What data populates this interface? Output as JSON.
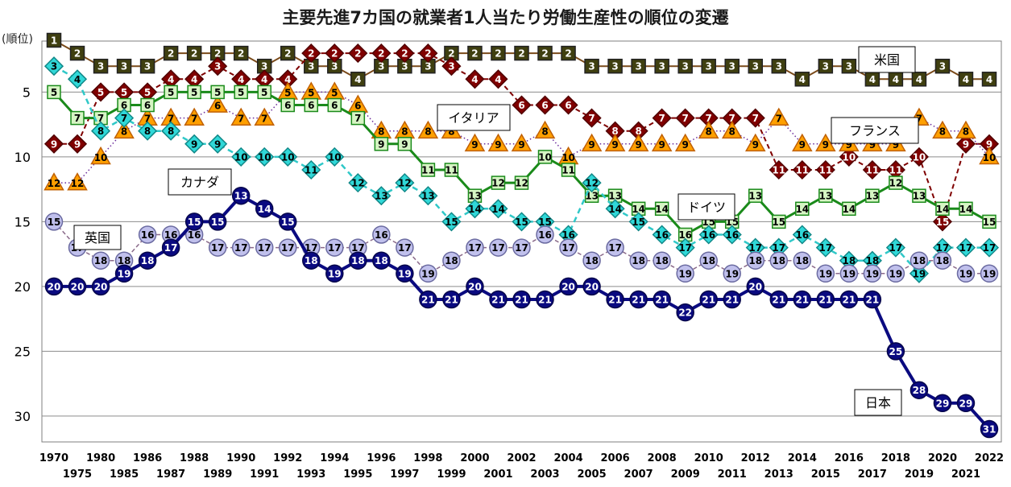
{
  "chart_data": {
    "type": "line",
    "title": "主要先進7カ国の就業者1人当たり労働生産性の順位の変遷",
    "ylabel": "(順位)",
    "ylim": [
      31,
      0
    ],
    "yticks": [
      5,
      10,
      15,
      20,
      25,
      30
    ],
    "x": [
      "1970",
      "1975",
      "1980",
      "1985",
      "1986",
      "1987",
      "1988",
      "1989",
      "1990",
      "1991",
      "1992",
      "1993",
      "1994",
      "1995",
      "1996",
      "1997",
      "1998",
      "1999",
      "2000",
      "2001",
      "2002",
      "2003",
      "2004",
      "2005",
      "2006",
      "2007",
      "2008",
      "2009",
      "2010",
      "2011",
      "2012",
      "2013",
      "2014",
      "2015",
      "2016",
      "2017",
      "2018",
      "2019",
      "2020",
      "2021",
      "2022"
    ],
    "grid": "horizontal",
    "series": [
      {
        "name": "米国",
        "color": "#3f3f10",
        "marker": "square",
        "line": "solid-thin",
        "values": [
          1,
          2,
          3,
          3,
          3,
          2,
          2,
          2,
          2,
          3,
          2,
          3,
          3,
          4,
          3,
          3,
          3,
          2,
          2,
          2,
          2,
          2,
          2,
          3,
          3,
          3,
          3,
          3,
          3,
          3,
          3,
          3,
          4,
          3,
          3,
          4,
          4,
          4,
          3,
          4,
          4
        ]
      },
      {
        "name": "イタリア",
        "color": "#7f0000",
        "marker": "diamond",
        "line": "dashed",
        "values": [
          9,
          9,
          5,
          5,
          5,
          4,
          4,
          3,
          4,
          4,
          4,
          2,
          2,
          2,
          2,
          2,
          2,
          3,
          4,
          4,
          6,
          6,
          6,
          7,
          8,
          8,
          7,
          7,
          7,
          7,
          7,
          11,
          11,
          11,
          10,
          11,
          11,
          10,
          15,
          9,
          9
        ]
      },
      {
        "name": "フランス",
        "color": "#ffa000",
        "marker": "triangle",
        "line": "dotted",
        "values": [
          12,
          12,
          10,
          8,
          7,
          7,
          7,
          6,
          7,
          7,
          5,
          5,
          5,
          6,
          8,
          8,
          8,
          8,
          9,
          9,
          9,
          8,
          10,
          9,
          9,
          9,
          9,
          9,
          8,
          8,
          9,
          7,
          9,
          9,
          9,
          9,
          9,
          7,
          8,
          8,
          10
        ]
      },
      {
        "name": "ドイツ",
        "color": "#1f8a1f",
        "marker": "square",
        "line": "solid",
        "values": [
          5,
          7,
          7,
          6,
          6,
          5,
          5,
          5,
          5,
          5,
          6,
          6,
          6,
          7,
          9,
          9,
          11,
          11,
          13,
          12,
          12,
          10,
          11,
          13,
          13,
          14,
          14,
          16,
          15,
          15,
          13,
          15,
          14,
          13,
          14,
          13,
          12,
          13,
          14,
          14,
          15
        ]
      },
      {
        "name": "カナダ",
        "color": "#30c8c8",
        "marker": "diamond",
        "line": "dashed",
        "values": [
          3,
          4,
          8,
          7,
          8,
          8,
          9,
          9,
          10,
          10,
          10,
          11,
          10,
          12,
          13,
          12,
          13,
          15,
          14,
          14,
          15,
          15,
          16,
          12,
          14,
          15,
          16,
          17,
          16,
          16,
          17,
          17,
          16,
          17,
          18,
          18,
          17,
          19,
          17,
          17,
          17
        ]
      },
      {
        "name": "英国",
        "color": "#8a7ab0",
        "marker": "circle",
        "line": "dashed-thin",
        "values": [
          15,
          17,
          18,
          18,
          16,
          16,
          16,
          17,
          17,
          17,
          17,
          17,
          17,
          17,
          16,
          17,
          19,
          18,
          17,
          17,
          17,
          16,
          17,
          18,
          17,
          18,
          18,
          19,
          18,
          19,
          18,
          18,
          18,
          19,
          19,
          19,
          19,
          18,
          18,
          19,
          19
        ]
      },
      {
        "name": "日本",
        "color": "#0a0a80",
        "marker": "circle",
        "line": "solid-thick",
        "values": [
          20,
          20,
          20,
          19,
          18,
          17,
          15,
          15,
          13,
          14,
          15,
          18,
          19,
          18,
          18,
          19,
          21,
          21,
          20,
          21,
          21,
          21,
          20,
          20,
          21,
          21,
          21,
          22,
          21,
          21,
          20,
          21,
          21,
          21,
          21,
          21,
          25,
          28,
          29,
          29,
          31
        ]
      }
    ],
    "annotations": [
      {
        "text": "米国",
        "series": "米国"
      },
      {
        "text": "イタリア",
        "series": "イタリア"
      },
      {
        "text": "フランス",
        "series": "フランス"
      },
      {
        "text": "ドイツ",
        "series": "ドイツ"
      },
      {
        "text": "カナダ",
        "series": "カナダ"
      },
      {
        "text": "英国",
        "series": "英国"
      },
      {
        "text": "日本",
        "series": "日本"
      }
    ]
  }
}
